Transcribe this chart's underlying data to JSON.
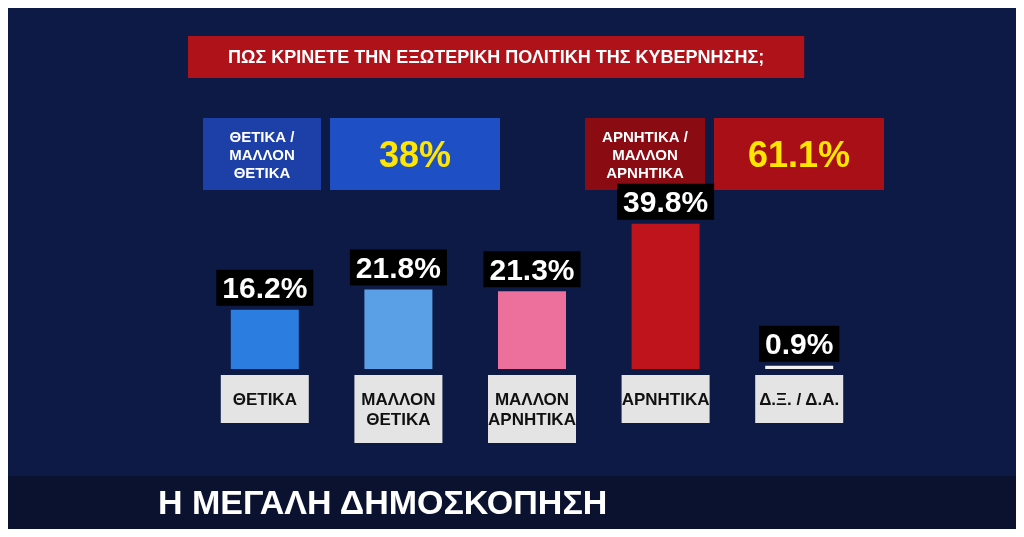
{
  "chart_data": {
    "type": "bar",
    "title": "ΠΩΣ ΚΡΙΝΕΤΕ ΤΗΝ ΕΞΩΤΕΡΙΚΗ ΠΟΛΙΤΙΚΗ ΤΗΣ ΚΥΒΕΡΝΗΣΗΣ;",
    "categories": [
      "ΘΕΤΙΚΑ",
      "ΜΑΛΛΟΝ ΘΕΤΙΚΑ",
      "ΜΑΛΛΟΝ ΑΡΝΗΤΙΚΑ",
      "ΑΡΝΗΤΙΚΑ",
      "Δ.Ξ. / Δ.Α."
    ],
    "values": [
      16.2,
      21.8,
      21.3,
      39.8,
      0.9
    ],
    "colors": [
      "#2b7de0",
      "#5aa0e6",
      "#ec6f9c",
      "#c0141c",
      "#f2f2f2"
    ],
    "value_labels": [
      "16.2%",
      "21.8%",
      "21.3%",
      "39.8%",
      "0.9%"
    ],
    "annotations": [
      "ΘΕΤΙΚΑ / ΜΑΛΛΟΝ ΘΕΤΙΚΑ",
      "38%",
      "ΑΡΝΗΤΙΚΑ / ΜΑΛΛΟΝ ΑΡΝΗΤΙΚΑ",
      "61.1%",
      "Η ΜΕΓΑΛΗ ΔΗΜΟΣΚΟΠΗΣΗ"
    ],
    "grid": false
  }
}
